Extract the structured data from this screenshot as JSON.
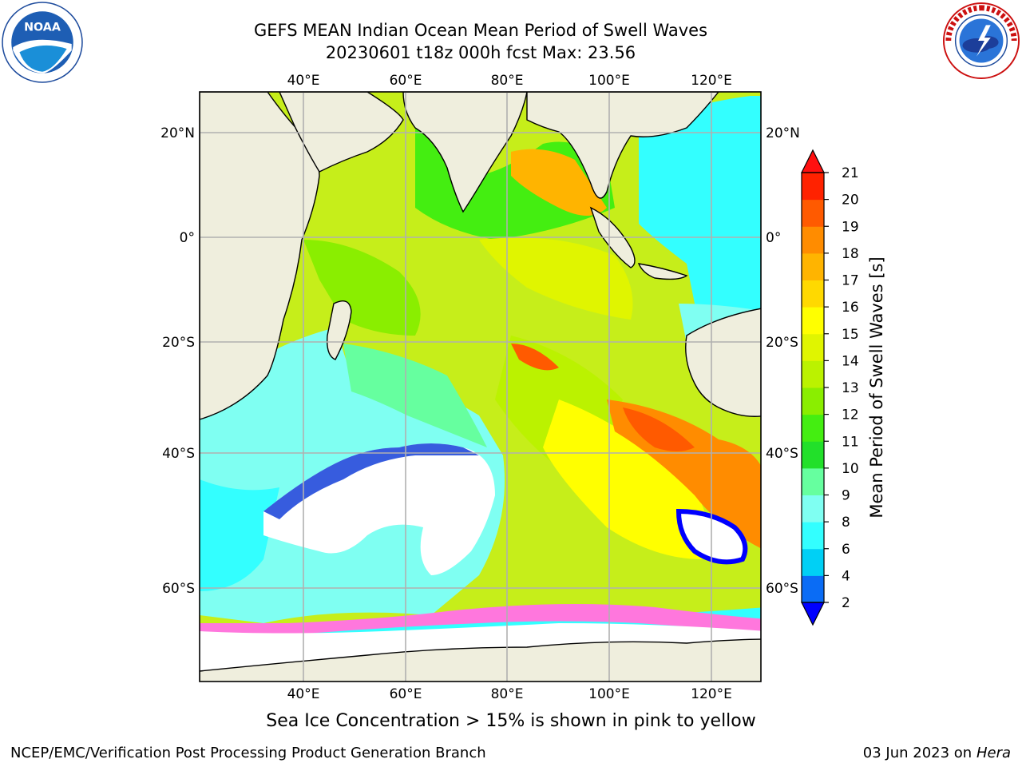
{
  "title": {
    "line1": "GEFS MEAN Indian Ocean Mean Period of Swell Waves",
    "line2": "20230601 t18z 000h fcst   Max: 23.56"
  },
  "logos": {
    "left": {
      "icon": "noaa-logo-icon",
      "text": "NOAA"
    },
    "right": {
      "icon": "nws-logo-icon"
    }
  },
  "map": {
    "lon_labels": [
      "40°E",
      "60°E",
      "80°E",
      "100°E",
      "120°E"
    ],
    "lat_labels": [
      "20°N",
      "0°",
      "20°S",
      "40°S",
      "60°S"
    ],
    "extent": {
      "lon": [
        20,
        130
      ],
      "lat": [
        -75,
        27
      ]
    },
    "grid": true,
    "colors": {
      "land": "#efeedd",
      "coast": "#000000",
      "grid": "#b0b0b0",
      "ice_free_mask": "#ffffff"
    }
  },
  "colorbar": {
    "label": "Mean Period of Swell Waves [s]",
    "ticks": [
      "2",
      "4",
      "6",
      "8",
      "9",
      "10",
      "11",
      "12",
      "13",
      "14",
      "15",
      "16",
      "17",
      "18",
      "19",
      "20",
      "21"
    ],
    "colors": [
      "#0a6cf5",
      "#00d0f5",
      "#33ffff",
      "#7ffff2",
      "#66ff9f",
      "#22e02a",
      "#44ee11",
      "#8aee00",
      "#bbf200",
      "#e0f500",
      "#ffff00",
      "#ffd900",
      "#ffb400",
      "#ff8c00",
      "#ff5a00",
      "#ff2200"
    ],
    "under_color": "#0000ff",
    "over_color": "#ff1010"
  },
  "footer": {
    "note": "Sea Ice Concentration > 15% is shown in pink to yellow",
    "credit_left": "NCEP/EMC/Verification Post Processing Product Generation Branch",
    "date": "03 Jun 2023 on",
    "host": "Hera"
  }
}
